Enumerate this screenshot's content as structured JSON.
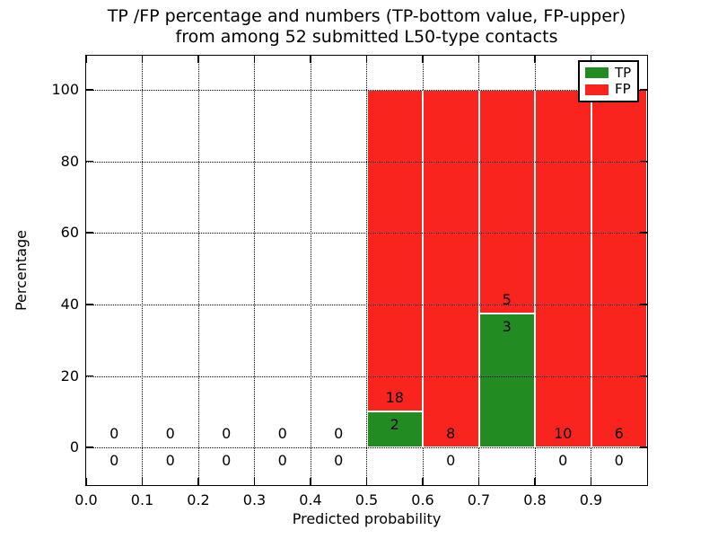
{
  "title": {
    "line1": "TP /FP percentage and numbers (TP-bottom value, FP-upper)",
    "line2": "from among 52 submitted L50-type contacts"
  },
  "axes": {
    "xlabel": "Predicted probability",
    "ylabel": "Percentage",
    "x_tick_labels": [
      "0.0",
      "0.1",
      "0.2",
      "0.3",
      "0.4",
      "0.5",
      "0.6",
      "0.7",
      "0.8",
      "0.9"
    ],
    "y_tick_labels": [
      "0",
      "20",
      "40",
      "60",
      "80",
      "100"
    ]
  },
  "legend": {
    "items": [
      {
        "label": "TP",
        "color": "#228b22"
      },
      {
        "label": "FP",
        "color": "#f9241e"
      }
    ],
    "position": "upper right"
  },
  "colors": {
    "tp_green": "#228b22",
    "fp_red": "#f9241e",
    "grid": "#000000",
    "background": "#ffffff",
    "bar_edge": "#ffffff",
    "text": "#000000"
  },
  "chart_data": {
    "type": "bar",
    "stacked": true,
    "title": "TP /FP percentage and numbers (TP-bottom value, FP-upper) from among 52 submitted L50-type contacts",
    "xlabel": "Predicted probability",
    "ylabel": "Percentage",
    "xlim": [
      0,
      1.0
    ],
    "ylim": [
      -10.5,
      109.5
    ],
    "x_ticks": [
      0.0,
      0.1,
      0.2,
      0.3,
      0.4,
      0.5,
      0.6,
      0.7,
      0.8,
      0.9
    ],
    "y_ticks": [
      0,
      20,
      40,
      60,
      80,
      100
    ],
    "grid": true,
    "legend_position": "upper right",
    "total_contacts": 52,
    "bin_width": 0.1,
    "series": [
      {
        "name": "TP",
        "color": "#228b22"
      },
      {
        "name": "FP",
        "color": "#f9241e"
      }
    ],
    "bins": [
      {
        "x_start": 0.0,
        "x_end": 0.1,
        "tp_count": 0,
        "fp_count": 0,
        "tp_pct": 0,
        "fp_pct": 0
      },
      {
        "x_start": 0.1,
        "x_end": 0.2,
        "tp_count": 0,
        "fp_count": 0,
        "tp_pct": 0,
        "fp_pct": 0
      },
      {
        "x_start": 0.2,
        "x_end": 0.3,
        "tp_count": 0,
        "fp_count": 0,
        "tp_pct": 0,
        "fp_pct": 0
      },
      {
        "x_start": 0.3,
        "x_end": 0.4,
        "tp_count": 0,
        "fp_count": 0,
        "tp_pct": 0,
        "fp_pct": 0
      },
      {
        "x_start": 0.4,
        "x_end": 0.5,
        "tp_count": 0,
        "fp_count": 0,
        "tp_pct": 0,
        "fp_pct": 0
      },
      {
        "x_start": 0.5,
        "x_end": 0.6,
        "tp_count": 2,
        "fp_count": 18,
        "tp_pct": 10,
        "fp_pct": 90
      },
      {
        "x_start": 0.6,
        "x_end": 0.7,
        "tp_count": 0,
        "fp_count": 8,
        "tp_pct": 0,
        "fp_pct": 100
      },
      {
        "x_start": 0.7,
        "x_end": 0.8,
        "tp_count": 3,
        "fp_count": 5,
        "tp_pct": 37.5,
        "fp_pct": 62.5
      },
      {
        "x_start": 0.8,
        "x_end": 0.9,
        "tp_count": 0,
        "fp_count": 10,
        "tp_pct": 0,
        "fp_pct": 100
      },
      {
        "x_start": 0.9,
        "x_end": 1.0,
        "tp_count": 0,
        "fp_count": 6,
        "tp_pct": 0,
        "fp_pct": 100
      }
    ]
  }
}
